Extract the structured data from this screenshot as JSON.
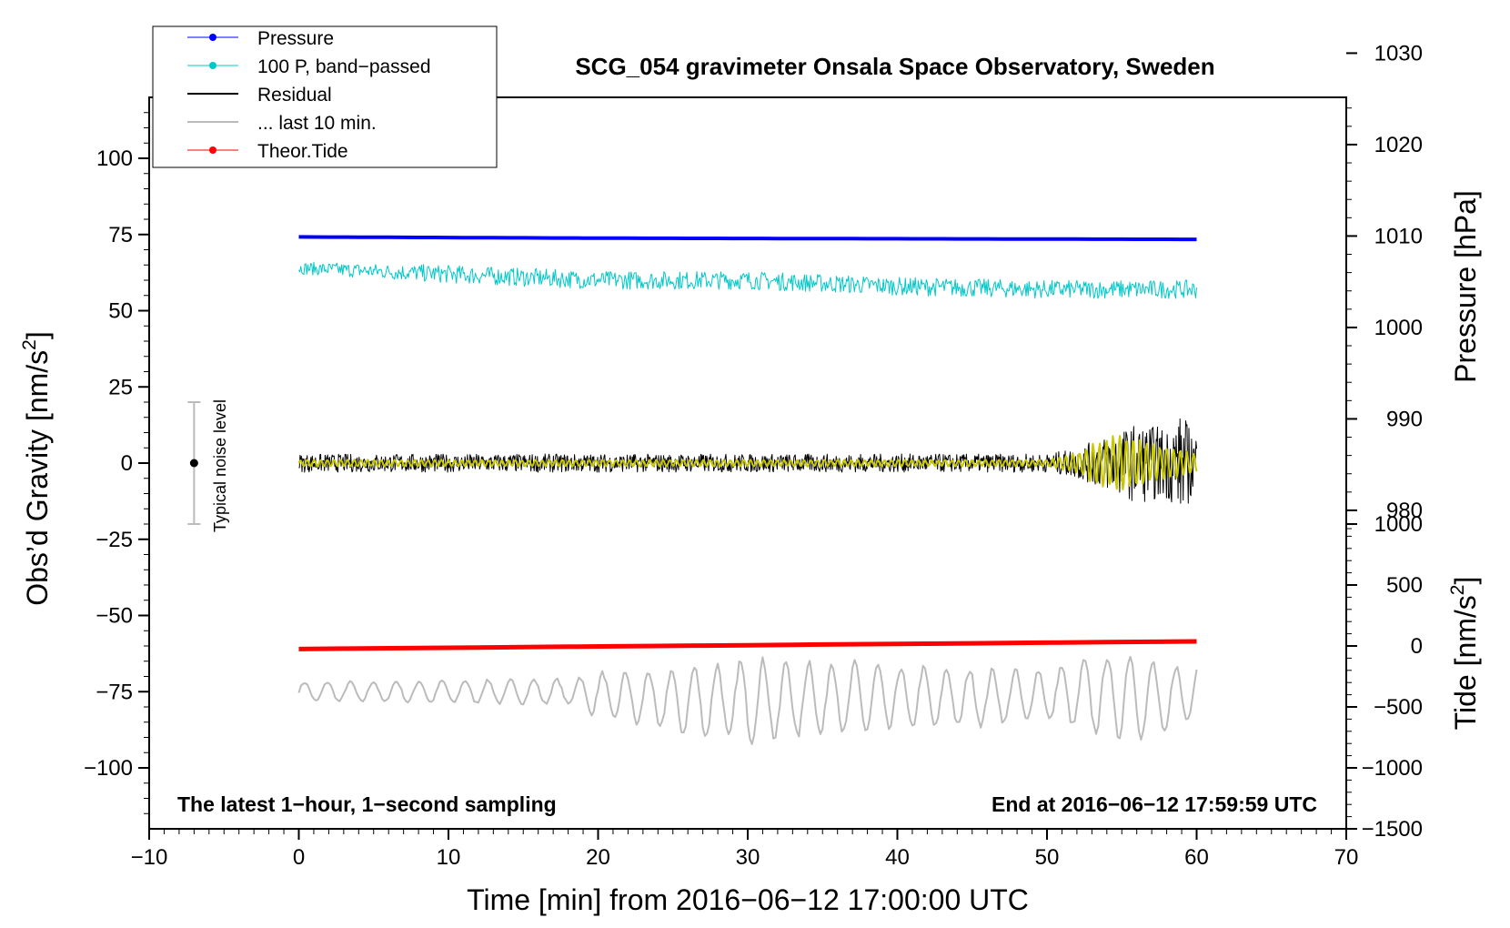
{
  "chart_data": {
    "type": "line",
    "title": "SCG_054 gravimeter Onsala Space Observatory, Sweden",
    "xlabel": "Time [min] from 2016−06−12 17:00:00 UTC",
    "ylabel_left_main": "Obs’d Gravity [nm/s",
    "ylabel_left_sup": "2",
    "ylabel_left_end": "]",
    "ylabel_right_pressure": "Pressure [hPa]",
    "ylabel_right_tide_main": "Tide [nm/s",
    "ylabel_right_tide_sup": "2",
    "ylabel_right_tide_end": "]",
    "xlim": [
      -10,
      70
    ],
    "ylim": [
      -120,
      120
    ],
    "x_ticks": [
      "−10",
      "0",
      "10",
      "20",
      "30",
      "40",
      "50",
      "60",
      "70"
    ],
    "x_tick_values": [
      -10,
      0,
      10,
      20,
      30,
      40,
      50,
      60,
      70
    ],
    "y_ticks": [
      "−100",
      "−75",
      "−50",
      "−25",
      "0",
      "25",
      "50",
      "75",
      "100"
    ],
    "y_tick_values": [
      -100,
      -75,
      -50,
      -25,
      0,
      25,
      50,
      75,
      100
    ],
    "pressure_axis": {
      "ticks": [
        "980",
        "990",
        "1000",
        "1010",
        "1020",
        "1030"
      ],
      "values": [
        980,
        990,
        1000,
        1010,
        1020,
        1030
      ],
      "ref_value": 1010,
      "ref_gravity": 74.5,
      "gravity_per_unit": 3.0
    },
    "tide_axis": {
      "ticks": [
        "−1500",
        "−1000",
        "−500",
        "0",
        "500",
        "1000"
      ],
      "values": [
        -1500,
        -1000,
        -500,
        0,
        500,
        1000
      ],
      "ref_value": 0,
      "ref_gravity": -60,
      "gravity_per_unit": 0.04
    },
    "legend": [
      {
        "label": "Pressure",
        "color": "#0000ff",
        "marker": true
      },
      {
        "label": "100 P, band−passed",
        "color": "#00c8c8",
        "marker": true
      },
      {
        "label": "Residual",
        "color": "#000000",
        "marker": false
      },
      {
        "label": "... last 10 min.",
        "color": "#bbbbbb",
        "marker": false
      },
      {
        "label": "Theor.Tide",
        "color": "#ff0000",
        "marker": true
      }
    ],
    "annotations": {
      "left_note": "The latest 1−hour, 1−second sampling",
      "right_note": "End at 2016−06−12 17:59:59 UTC",
      "noise_label": "Typical noise level",
      "noise_bar": {
        "x": -7,
        "center": 0,
        "low": -20,
        "high": 20
      }
    },
    "series": [
      {
        "name": "Pressure",
        "color": "#0000ff",
        "x": [
          0,
          10,
          20,
          30,
          40,
          50,
          60
        ],
        "values": [
          74.2,
          74.0,
          73.8,
          73.7,
          73.6,
          73.5,
          73.4
        ]
      },
      {
        "name": "100 P, band−passed",
        "color": "#00c8c8",
        "x": [
          0,
          10,
          20,
          30,
          40,
          50,
          60
        ],
        "values": [
          64,
          62,
          60,
          60,
          58,
          57,
          57
        ],
        "amplitude": [
          2,
          3,
          3,
          3,
          3,
          3,
          3
        ]
      },
      {
        "name": "Residual",
        "color": "#000000",
        "x": [
          0,
          10,
          20,
          30,
          40,
          50,
          52,
          54,
          56,
          58,
          59,
          60
        ],
        "values": [
          0,
          0,
          0,
          0,
          0,
          0,
          0,
          0,
          0,
          0,
          0,
          0
        ],
        "amplitude": [
          3,
          3,
          3,
          3,
          3,
          3,
          5,
          9,
          13,
          12,
          16,
          10
        ]
      },
      {
        "name": "Yellow filtered",
        "color": "#c8c800",
        "x": [
          0,
          50,
          52,
          53,
          55,
          57,
          58,
          60
        ],
        "values": [
          0,
          0,
          0,
          0,
          0,
          0,
          0,
          0
        ],
        "amplitude": [
          1,
          1,
          3,
          6,
          9,
          6,
          5,
          3
        ]
      },
      {
        "name": "Theor.Tide",
        "color": "#ff0000",
        "x": [
          0,
          60
        ],
        "values": [
          -61,
          -58.5
        ]
      },
      {
        "name": "... last 10 min.",
        "color": "#bbbbbb",
        "x": [
          0,
          18,
          20,
          25,
          30,
          35,
          40,
          45,
          50,
          55,
          58,
          60
        ],
        "values": [
          -75,
          -75,
          -76,
          -78,
          -78,
          -77,
          -77,
          -77,
          -76,
          -76,
          -78,
          -74
        ],
        "amplitude": [
          3,
          4,
          7,
          10,
          13,
          12,
          10,
          9,
          8,
          14,
          11,
          8
        ]
      }
    ]
  }
}
